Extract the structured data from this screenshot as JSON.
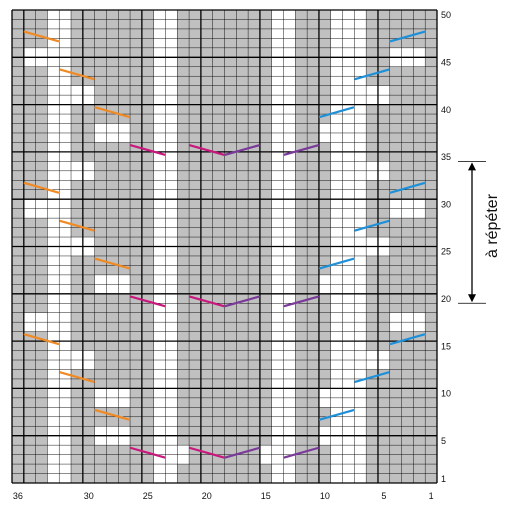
{
  "grid": {
    "columns": 36,
    "rows": 50,
    "shaded_color": "#c0c0c0",
    "line_color": "#000000",
    "background": "#ffffff"
  },
  "column_labels": [
    "36",
    "30",
    "25",
    "20",
    "15",
    "10",
    "5",
    "1"
  ],
  "row_labels": [
    "50",
    "45",
    "40",
    "35",
    "30",
    "25",
    "20",
    "15",
    "10",
    "5",
    "1"
  ],
  "repeat": {
    "label": "à répéter",
    "from_row": 19,
    "to_row": 35
  },
  "colors": {
    "orange": "#f08a24",
    "blue": "#1e90d8",
    "magenta": "#c8187c",
    "purple": "#7a3a9a"
  },
  "icons": [
    "double-arrow-icon"
  ]
}
